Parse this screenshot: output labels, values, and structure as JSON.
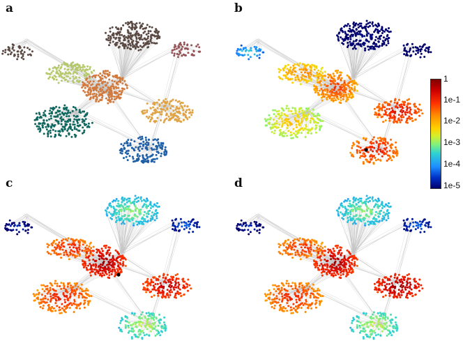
{
  "panels": [
    {
      "label": "a",
      "scheme": "community"
    },
    {
      "label": "b",
      "scheme": "heat",
      "seed": "black-node-bottom"
    },
    {
      "label": "c",
      "scheme": "heat",
      "seed": "black-node-center"
    },
    {
      "label": "d",
      "scheme": "heat"
    }
  ],
  "colorbar": {
    "ticks": [
      "1",
      "1e-1",
      "1e-2",
      "1e-3",
      "1e-4",
      "1e-5"
    ]
  },
  "communities": {
    "colors_a": [
      "#5a4a43",
      "#5a4a43",
      "#955558",
      "#b5c86c",
      "#d27a3d",
      "#e0a446",
      "#10675f",
      "#1f5fa8"
    ],
    "heat_b": [
      0.35,
      0.05,
      0.02,
      0.72,
      0.8,
      0.88,
      0.62,
      0.86
    ],
    "heat_c": [
      0.12,
      0.45,
      0.2,
      0.86,
      0.96,
      0.93,
      0.85,
      0.5
    ],
    "heat_d": [
      0.12,
      0.45,
      0.2,
      0.84,
      0.95,
      0.97,
      0.84,
      0.5
    ]
  }
}
